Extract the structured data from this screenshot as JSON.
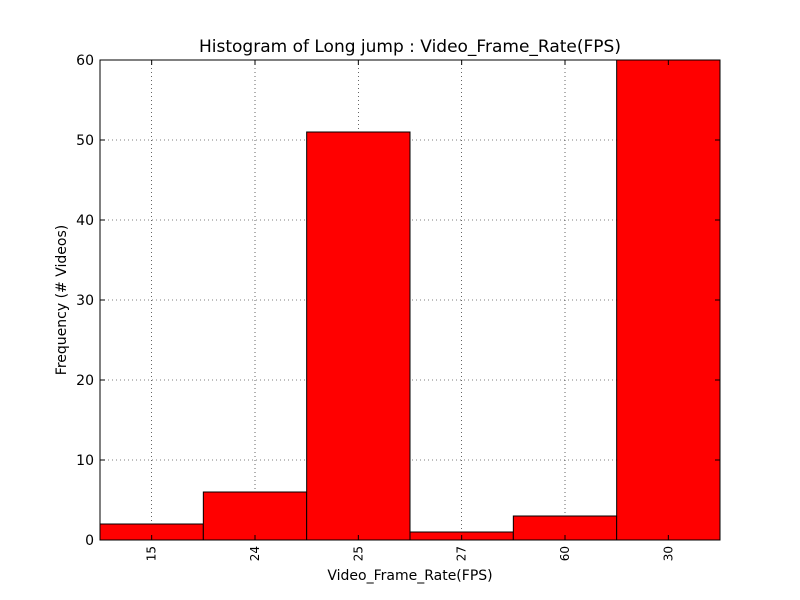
{
  "chart_data": {
    "type": "bar",
    "title": "Histogram of Long jump : Video_Frame_Rate(FPS)",
    "xlabel": "Video_Frame_Rate(FPS)",
    "ylabel": "Frequency (# Videos)",
    "categories": [
      "15",
      "24",
      "25",
      "27",
      "60",
      "30"
    ],
    "values": [
      2,
      6,
      51,
      1,
      3,
      60
    ],
    "ylim": [
      0,
      60
    ],
    "yticks": [
      "0",
      "10",
      "20",
      "30",
      "40",
      "50",
      "60"
    ],
    "bar_color": "#ff0000",
    "grid": true,
    "legend": "none"
  }
}
